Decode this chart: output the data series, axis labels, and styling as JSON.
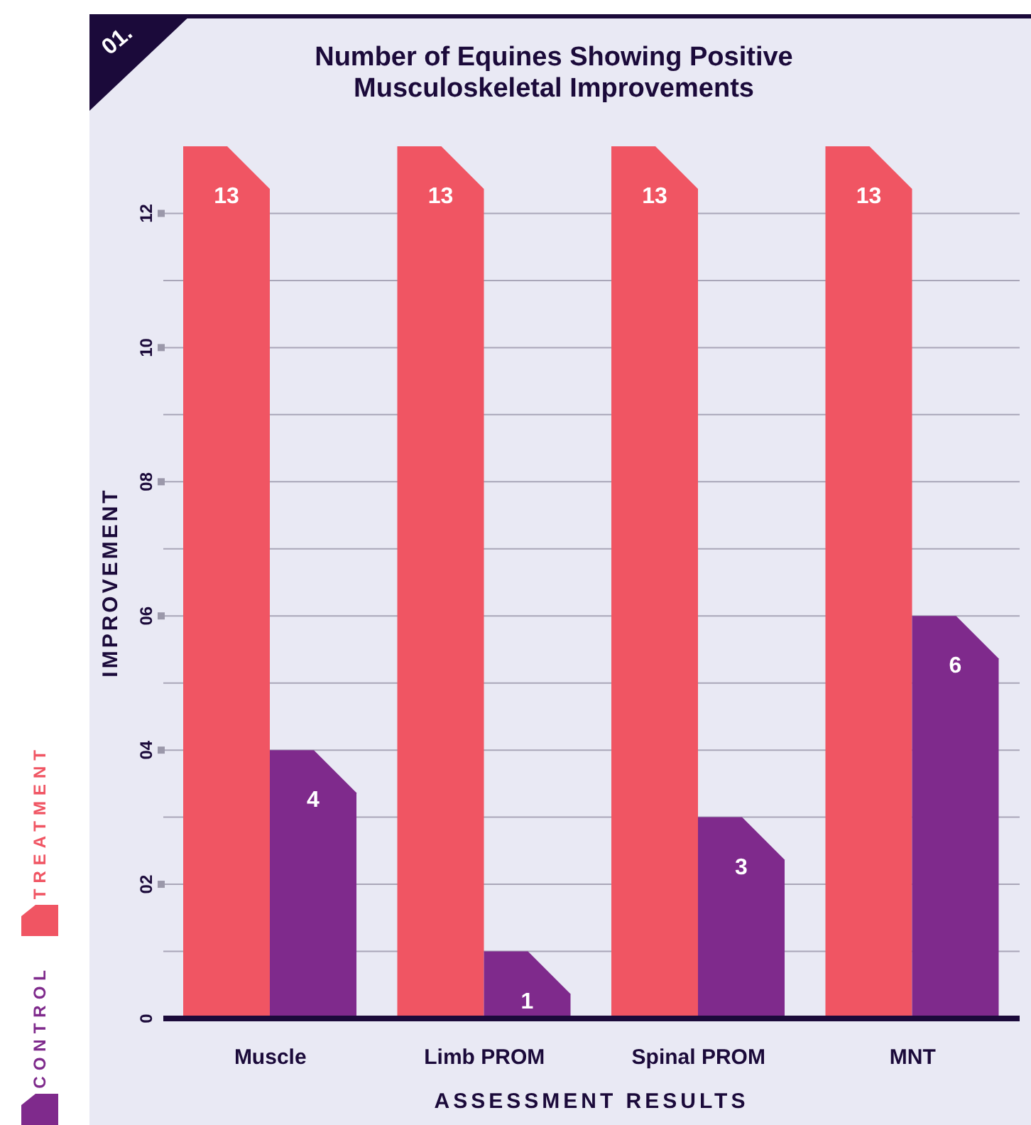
{
  "chart_data": {
    "type": "bar",
    "title": "Number of Equines Showing Positive Musculoskeletal Improvements",
    "xlabel": "ASSESSMENT RESULTS",
    "ylabel": "IMPROVEMENT",
    "annotations": [
      "01."
    ],
    "categories": [
      "Muscle",
      "Limb PROM",
      "Spinal PROM",
      "MNT"
    ],
    "series": [
      {
        "name": "TREATMENT",
        "color": "#f05563",
        "values": [
          13,
          13,
          13,
          13
        ]
      },
      {
        "name": "CONTROL",
        "color": "#7f2a8c",
        "values": [
          4,
          1,
          3,
          6
        ]
      }
    ],
    "ylim": [
      0,
      13
    ],
    "yticks": [
      {
        "value": 0,
        "label": "0"
      },
      {
        "value": 1,
        "label": null
      },
      {
        "value": 2,
        "label": "02"
      },
      {
        "value": 3,
        "label": null
      },
      {
        "value": 4,
        "label": "04"
      },
      {
        "value": 5,
        "label": null
      },
      {
        "value": 6,
        "label": "06"
      },
      {
        "value": 7,
        "label": null
      },
      {
        "value": 8,
        "label": "08"
      },
      {
        "value": 9,
        "label": null
      },
      {
        "value": 10,
        "label": "10"
      },
      {
        "value": 11,
        "label": null
      },
      {
        "value": 12,
        "label": "12"
      }
    ],
    "grid": "y",
    "legend": "left",
    "data_labels": true
  }
}
